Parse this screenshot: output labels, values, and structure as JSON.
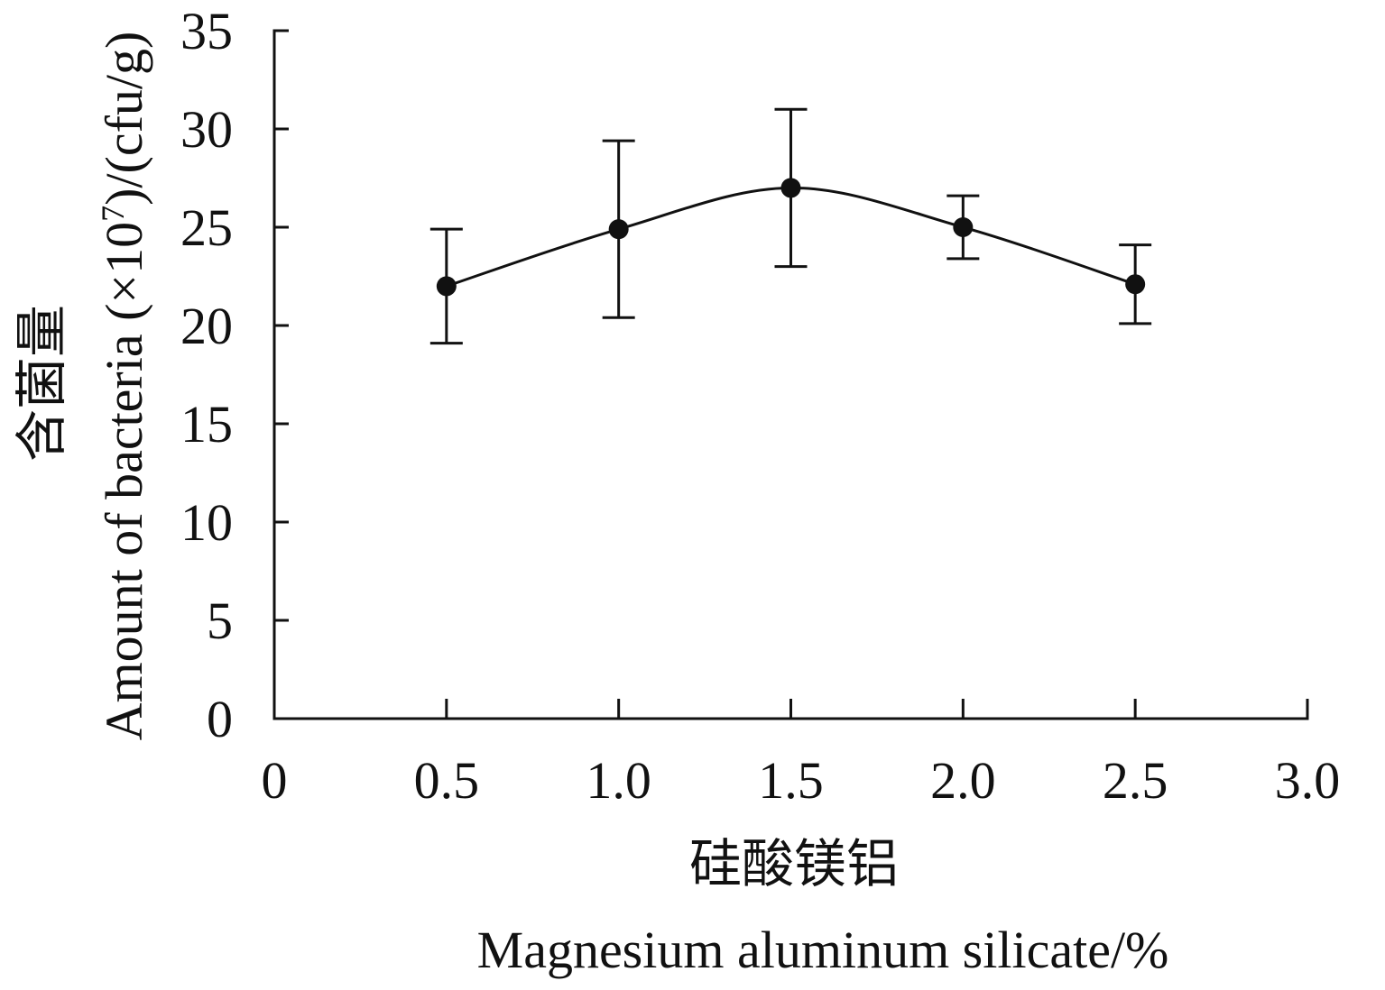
{
  "chart_data": {
    "type": "line",
    "smooth": true,
    "grid": false,
    "x": [
      0.5,
      1.0,
      1.5,
      2.0,
      2.5
    ],
    "series": [
      {
        "values": [
          22.0,
          24.9,
          27.0,
          25.0,
          22.1
        ],
        "error": [
          2.9,
          4.5,
          4.0,
          1.6,
          2.0
        ]
      }
    ],
    "xlim": [
      0,
      3.0
    ],
    "ylim": [
      0,
      35
    ],
    "xticks": {
      "values": [
        0,
        0.5,
        1.0,
        1.5,
        2.0,
        2.5,
        3.0
      ],
      "labels": [
        "0",
        "0.5",
        "1.0",
        "1.5",
        "2.0",
        "2.5",
        "3.0"
      ]
    },
    "yticks": {
      "values": [
        0,
        5,
        10,
        15,
        20,
        25,
        30,
        35
      ],
      "labels": [
        "0",
        "5",
        "10",
        "15",
        "20",
        "25",
        "30",
        "35"
      ]
    },
    "xlabel_cn": "硅酸镁铝",
    "xlabel": "Magnesium aluminum silicate/%",
    "ylabel_cn": "含菌量",
    "ylabel": {
      "text": "Amount of bacteria (×10",
      "superscript": "7",
      "suffix": ")/(cfu/g)"
    },
    "series_color": "#111111"
  }
}
